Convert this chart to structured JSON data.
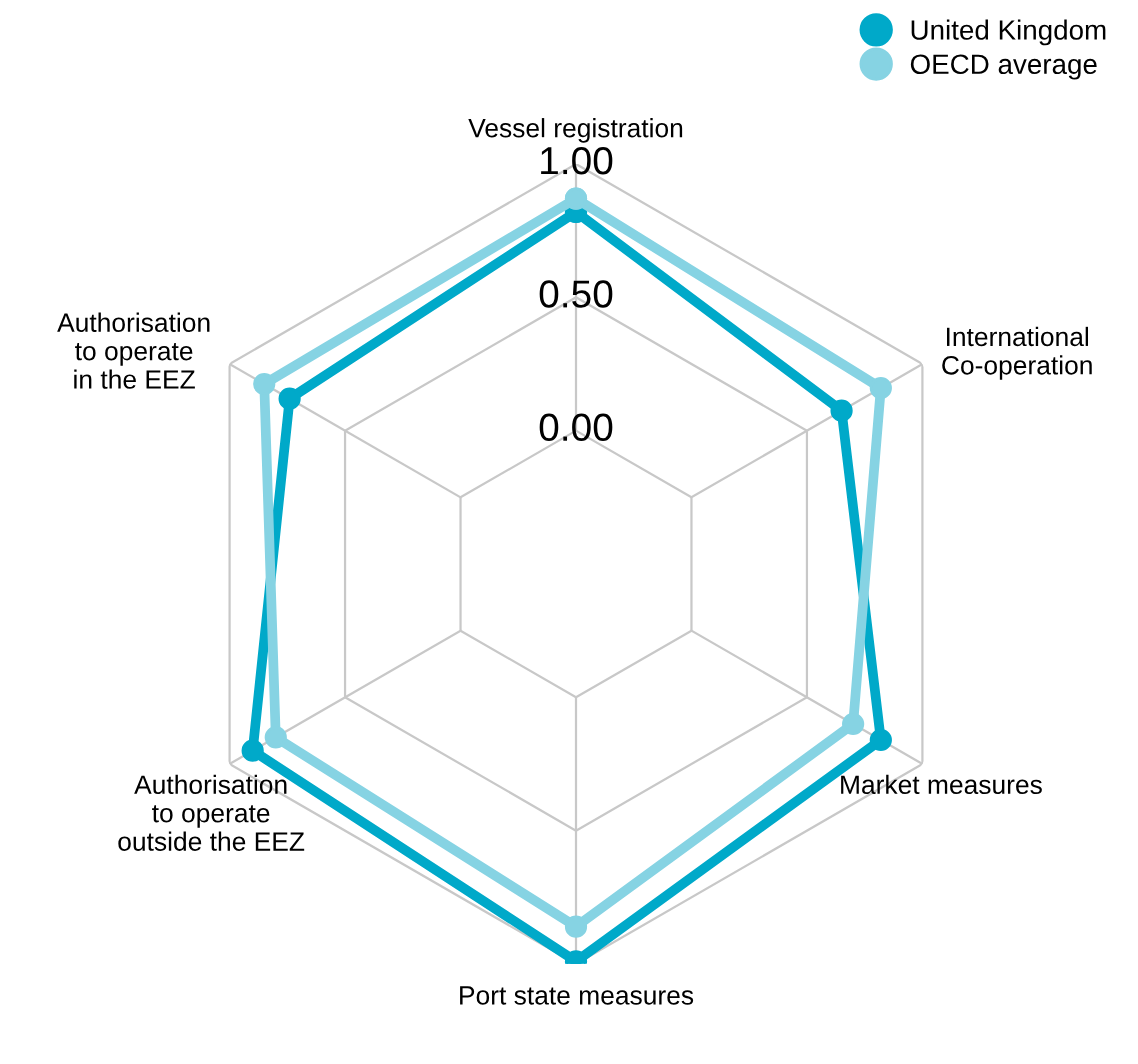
{
  "chart_data": {
    "type": "radar",
    "categories": [
      "Vessel registration",
      "International\nCo-operation",
      "Market measures",
      "Port state measures",
      "Authorisation\nto operate\noutside the EEZ",
      "Authorisation\nto operate\nin the EEZ"
    ],
    "series": [
      {
        "name": "United Kingdom",
        "color": "#00a9c9",
        "values": [
          0.82,
          0.65,
          0.82,
          0.99,
          0.9,
          0.74
        ]
      },
      {
        "name": "OECD average",
        "color": "#86d3e3",
        "values": [
          0.87,
          0.82,
          0.7,
          0.86,
          0.8,
          0.85
        ]
      }
    ],
    "ylim": [
      -0.5,
      1
    ],
    "yticks": [
      {
        "value": 0,
        "label": "0.00"
      },
      {
        "value": 0.5,
        "label": "0.50"
      },
      {
        "value": 1,
        "label": "1.00"
      }
    ],
    "grid": true,
    "legend": "top right",
    "marker": "circle",
    "line_style": "solid"
  }
}
